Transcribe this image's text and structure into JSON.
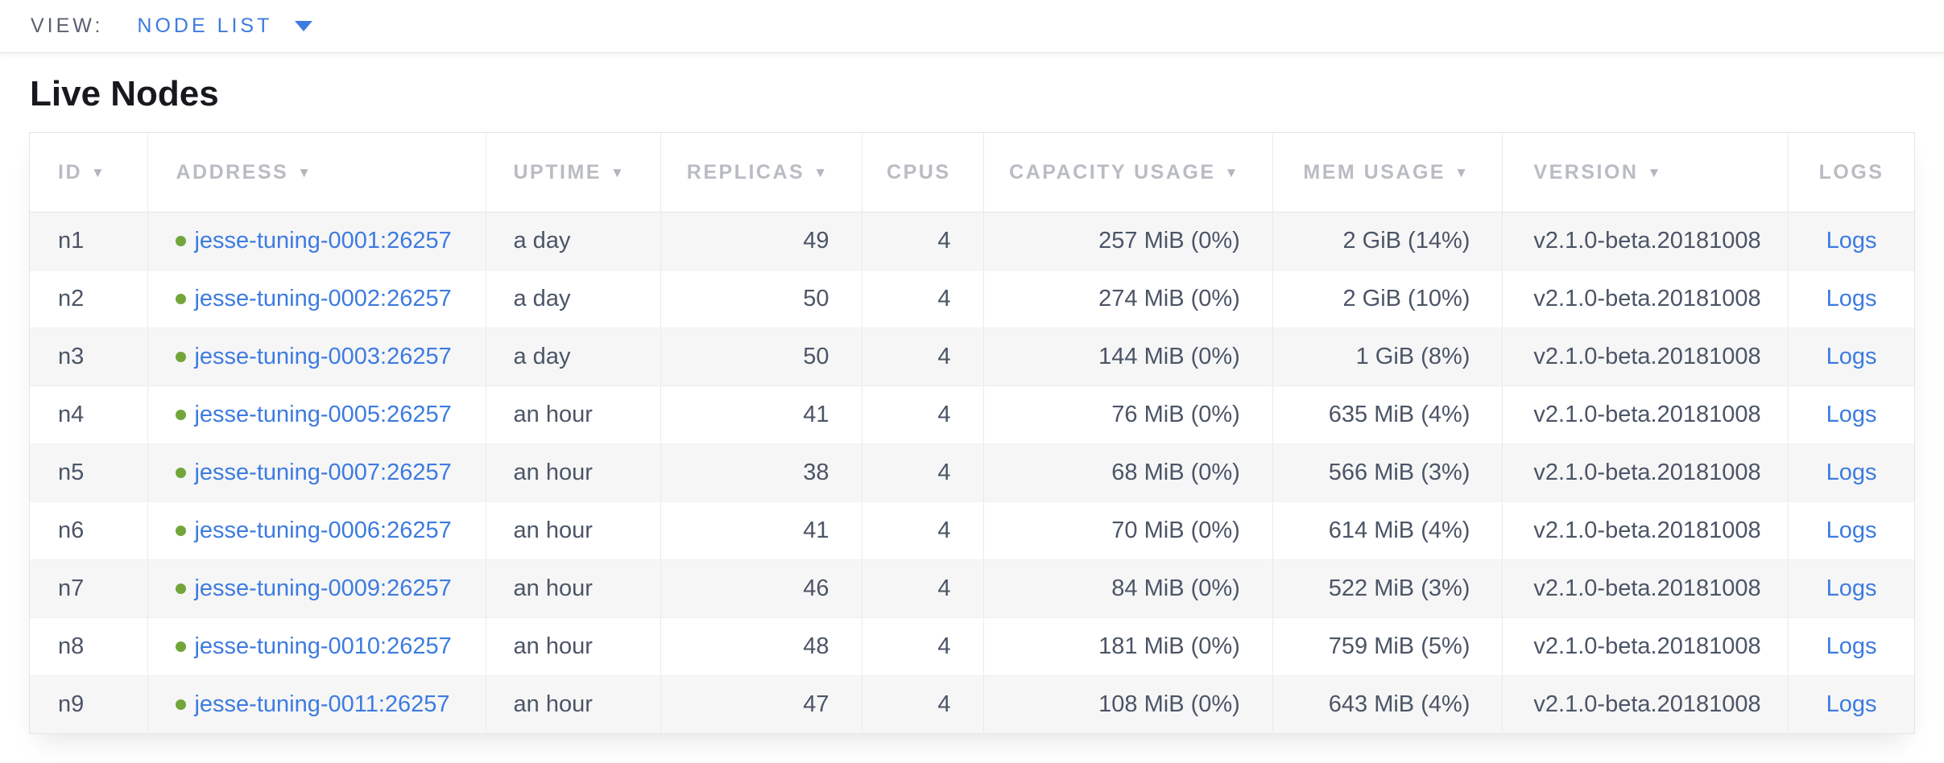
{
  "view_bar": {
    "label": "VIEW:",
    "selected_view": "NODE LIST"
  },
  "page": {
    "title": "Live Nodes"
  },
  "colors": {
    "accent_blue": "#3d7be0",
    "live_status_green": "#72a63a",
    "header_text_gray": "#b9bcc2",
    "body_text": "#4b5566",
    "alt_row_background": "#f6f6f7"
  },
  "table": {
    "sort_icon": "▼",
    "columns": [
      {
        "key": "id",
        "label": "ID",
        "sorted": true,
        "align": "left"
      },
      {
        "key": "address",
        "label": "ADDRESS",
        "sorted": true,
        "align": "left"
      },
      {
        "key": "uptime",
        "label": "UPTIME",
        "sorted": true,
        "align": "left"
      },
      {
        "key": "replicas",
        "label": "REPLICAS",
        "sorted": true,
        "align": "right"
      },
      {
        "key": "cpus",
        "label": "CPUS",
        "sorted": false,
        "align": "right"
      },
      {
        "key": "capacity",
        "label": "CAPACITY USAGE",
        "sorted": true,
        "align": "right"
      },
      {
        "key": "mem",
        "label": "MEM USAGE",
        "sorted": true,
        "align": "right"
      },
      {
        "key": "version",
        "label": "VERSION",
        "sorted": true,
        "align": "left"
      },
      {
        "key": "logs",
        "label": "LOGS",
        "sorted": false,
        "align": "center"
      }
    ],
    "rows": [
      {
        "id": "n1",
        "status": "live",
        "address": "jesse-tuning-0001:26257",
        "uptime": "a day",
        "replicas": "49",
        "cpus": "4",
        "capacity": "257 MiB (0%)",
        "mem": "2 GiB (14%)",
        "version": "v2.1.0-beta.20181008",
        "logs": "Logs"
      },
      {
        "id": "n2",
        "status": "live",
        "address": "jesse-tuning-0002:26257",
        "uptime": "a day",
        "replicas": "50",
        "cpus": "4",
        "capacity": "274 MiB (0%)",
        "mem": "2 GiB (10%)",
        "version": "v2.1.0-beta.20181008",
        "logs": "Logs"
      },
      {
        "id": "n3",
        "status": "live",
        "address": "jesse-tuning-0003:26257",
        "uptime": "a day",
        "replicas": "50",
        "cpus": "4",
        "capacity": "144 MiB (0%)",
        "mem": "1 GiB (8%)",
        "version": "v2.1.0-beta.20181008",
        "logs": "Logs"
      },
      {
        "id": "n4",
        "status": "live",
        "address": "jesse-tuning-0005:26257",
        "uptime": "an hour",
        "replicas": "41",
        "cpus": "4",
        "capacity": "76 MiB (0%)",
        "mem": "635 MiB (4%)",
        "version": "v2.1.0-beta.20181008",
        "logs": "Logs"
      },
      {
        "id": "n5",
        "status": "live",
        "address": "jesse-tuning-0007:26257",
        "uptime": "an hour",
        "replicas": "38",
        "cpus": "4",
        "capacity": "68 MiB (0%)",
        "mem": "566 MiB (3%)",
        "version": "v2.1.0-beta.20181008",
        "logs": "Logs"
      },
      {
        "id": "n6",
        "status": "live",
        "address": "jesse-tuning-0006:26257",
        "uptime": "an hour",
        "replicas": "41",
        "cpus": "4",
        "capacity": "70 MiB (0%)",
        "mem": "614 MiB (4%)",
        "version": "v2.1.0-beta.20181008",
        "logs": "Logs"
      },
      {
        "id": "n7",
        "status": "live",
        "address": "jesse-tuning-0009:26257",
        "uptime": "an hour",
        "replicas": "46",
        "cpus": "4",
        "capacity": "84 MiB (0%)",
        "mem": "522 MiB (3%)",
        "version": "v2.1.0-beta.20181008",
        "logs": "Logs"
      },
      {
        "id": "n8",
        "status": "live",
        "address": "jesse-tuning-0010:26257",
        "uptime": "an hour",
        "replicas": "48",
        "cpus": "4",
        "capacity": "181 MiB (0%)",
        "mem": "759 MiB (5%)",
        "version": "v2.1.0-beta.20181008",
        "logs": "Logs"
      },
      {
        "id": "n9",
        "status": "live",
        "address": "jesse-tuning-0011:26257",
        "uptime": "an hour",
        "replicas": "47",
        "cpus": "4",
        "capacity": "108 MiB (0%)",
        "mem": "643 MiB (4%)",
        "version": "v2.1.0-beta.20181008",
        "logs": "Logs"
      }
    ]
  }
}
